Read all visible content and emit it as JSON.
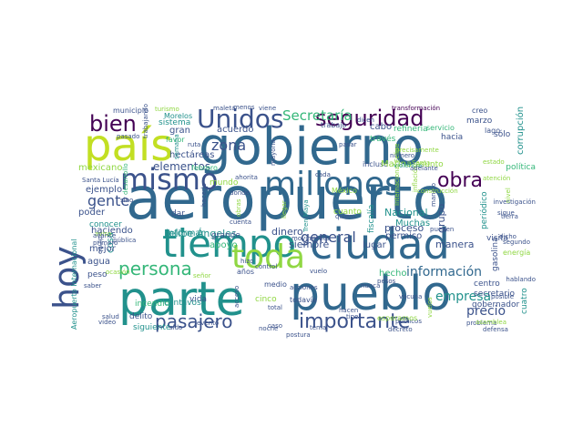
{
  "palette": {
    "purple": "#440154",
    "indigo": "#3b528b",
    "blue": "#31688e",
    "teal": "#21918c",
    "green": "#35b779",
    "lime": "#90d743",
    "yellow": "#c2df23"
  },
  "words": [
    {
      "text": "aeropuerto",
      "color": "blue"
    },
    {
      "text": "gobierno",
      "color": "blue"
    },
    {
      "text": "país",
      "color": "yellow"
    },
    {
      "text": "pueblo",
      "color": "blue"
    },
    {
      "text": "parte",
      "color": "teal"
    },
    {
      "text": "tiempo",
      "color": "teal"
    },
    {
      "text": "ciudad",
      "color": "blue"
    },
    {
      "text": "hoy",
      "color": "indigo"
    },
    {
      "text": "toda",
      "color": "lime"
    },
    {
      "text": "millones",
      "color": "blue"
    },
    {
      "text": "mismo",
      "color": "indigo"
    },
    {
      "text": "Unidos",
      "color": "indigo"
    },
    {
      "text": "bien",
      "color": "purple"
    },
    {
      "text": "seguridad",
      "color": "purple"
    },
    {
      "text": "obra",
      "color": "purple"
    },
    {
      "text": "pasajero",
      "color": "indigo"
    },
    {
      "text": "importante",
      "color": "indigo"
    },
    {
      "text": "persona",
      "color": "green"
    },
    {
      "text": "gente",
      "color": "indigo"
    },
    {
      "text": "general",
      "color": "indigo"
    },
    {
      "text": "información",
      "color": "blue"
    },
    {
      "text": "Secretaría",
      "color": "green"
    },
    {
      "text": "zona",
      "color": "indigo"
    },
    {
      "text": "empresa",
      "color": "teal"
    },
    {
      "text": "precio",
      "color": "indigo"
    },
    {
      "text": "elementos",
      "color": "indigo"
    },
    {
      "text": "Felipe Ángeles",
      "color": "teal"
    },
    {
      "text": "proceso",
      "color": "indigo"
    },
    {
      "text": "Nacional",
      "color": "teal"
    },
    {
      "text": "grupo",
      "color": "indigo"
    },
    {
      "text": "manera",
      "color": "indigo"
    },
    {
      "text": "hecho",
      "color": "green"
    },
    {
      "text": "siempre",
      "color": "indigo"
    },
    {
      "text": "lugar",
      "color": "indigo"
    },
    {
      "text": "Muchas",
      "color": "teal"
    },
    {
      "text": "permiso",
      "color": "indigo"
    },
    {
      "text": "dinero",
      "color": "indigo"
    },
    {
      "text": "apoyo",
      "color": "green"
    },
    {
      "text": "informar",
      "color": "teal"
    },
    {
      "text": "grande",
      "color": "indigo"
    },
    {
      "text": "dar",
      "color": "indigo"
    },
    {
      "text": "cosa",
      "color": "teal"
    },
    {
      "text": "agua",
      "color": "indigo"
    },
    {
      "text": "peso",
      "color": "indigo"
    },
    {
      "text": "mejor",
      "color": "indigo"
    },
    {
      "text": "poder",
      "color": "indigo"
    },
    {
      "text": "haciendo",
      "color": "indigo"
    },
    {
      "text": "conocer",
      "color": "teal"
    },
    {
      "text": "ejemplo",
      "color": "indigo"
    },
    {
      "text": "municipio",
      "color": "indigo"
    },
    {
      "text": "Morelos",
      "color": "teal"
    },
    {
      "text": "sistema",
      "color": "teal"
    },
    {
      "text": "gran",
      "color": "indigo"
    },
    {
      "text": "acuerdo",
      "color": "indigo"
    },
    {
      "text": "favor",
      "color": "green"
    },
    {
      "text": "hectáreas",
      "color": "indigo"
    },
    {
      "text": "febrero",
      "color": "green"
    },
    {
      "text": "mundo",
      "color": "lime"
    },
    {
      "text": "trabajo",
      "color": "indigo"
    },
    {
      "text": "cabo",
      "color": "indigo"
    },
    {
      "text": "través",
      "color": "green"
    },
    {
      "text": "refinería",
      "color": "green"
    },
    {
      "text": "servicio",
      "color": "green"
    },
    {
      "text": "marzo",
      "color": "indigo"
    },
    {
      "text": "creo",
      "color": "indigo"
    },
    {
      "text": "lago",
      "color": "indigo"
    },
    {
      "text": "hacia",
      "color": "indigo"
    },
    {
      "text": "incluso",
      "color": "indigo"
    },
    {
      "text": "fiscalía",
      "color": "teal"
    },
    {
      "text": "Marina",
      "color": "lime"
    },
    {
      "text": "asunto",
      "color": "lime"
    },
    {
      "text": "política",
      "color": "green"
    },
    {
      "text": "sólo",
      "color": "indigo"
    },
    {
      "text": "corrupción",
      "color": "teal"
    },
    {
      "text": "centro",
      "color": "indigo"
    },
    {
      "text": "secretario",
      "color": "indigo"
    },
    {
      "text": "gobernador",
      "color": "indigo"
    },
    {
      "text": "gasolina",
      "color": "indigo"
    },
    {
      "text": "periódico",
      "color": "teal"
    },
    {
      "text": "cuatro",
      "color": "teal"
    },
    {
      "text": "todavía",
      "color": "indigo"
    },
    {
      "text": "vida",
      "color": "indigo"
    },
    {
      "text": "cinco",
      "color": "lime"
    },
    {
      "text": "delito",
      "color": "indigo"
    },
    {
      "text": "siguiente",
      "color": "teal"
    },
    {
      "text": "incendio",
      "color": "green"
    },
    {
      "text": "centavos",
      "color": "teal"
    },
    {
      "text": "años",
      "color": "indigo"
    },
    {
      "text": "medio",
      "color": "indigo"
    },
    {
      "text": "Aeropuerto Internacional",
      "color": "teal"
    },
    {
      "text": "Tren Maya",
      "color": "teal"
    },
    {
      "text": "menos",
      "color": "indigo"
    },
    {
      "text": "cuanto",
      "color": "lime"
    },
    {
      "text": "acciones",
      "color": "indigo"
    },
    {
      "text": "semana",
      "color": "teal"
    },
    {
      "text": "mexicano",
      "color": "lime"
    },
    {
      "text": "maleta",
      "color": "indigo"
    },
    {
      "text": "viene",
      "color": "indigo"
    },
    {
      "text": "transformación",
      "color": "purple"
    },
    {
      "text": "pasado",
      "color": "indigo"
    },
    {
      "text": "ruta",
      "color": "indigo"
    },
    {
      "text": "dicen",
      "color": "indigo"
    },
    {
      "text": "pasar",
      "color": "indigo"
    },
    {
      "text": "violencia",
      "color": "teal"
    },
    {
      "text": "número",
      "color": "indigo"
    },
    {
      "text": "posible",
      "color": "indigo"
    },
    {
      "text": "defensa",
      "color": "indigo"
    },
    {
      "text": "hablando",
      "color": "indigo"
    },
    {
      "text": "nunca",
      "color": "indigo"
    },
    {
      "text": "pesos",
      "color": "indigo"
    },
    {
      "text": "pública",
      "color": "indigo"
    },
    {
      "text": "públicos",
      "color": "indigo"
    },
    {
      "text": "problema",
      "color": "indigo"
    },
    {
      "text": "decreto",
      "color": "indigo"
    },
    {
      "text": "precisamente",
      "color": "lime"
    },
    {
      "text": "salud",
      "color": "indigo"
    },
    {
      "text": "video",
      "color": "indigo"
    },
    {
      "text": "total",
      "color": "indigo"
    },
    {
      "text": "caso",
      "color": "indigo"
    },
    {
      "text": "tipo",
      "color": "indigo"
    },
    {
      "text": "vuelo",
      "color": "indigo"
    },
    {
      "text": "control",
      "color": "indigo"
    },
    {
      "text": "hizo",
      "color": "indigo"
    },
    {
      "text": "postura",
      "color": "indigo"
    },
    {
      "text": "acceso",
      "color": "indigo"
    },
    {
      "text": "evento",
      "color": "indigo"
    },
    {
      "text": "pueden",
      "color": "indigo"
    },
    {
      "text": "manejo",
      "color": "indigo"
    },
    {
      "text": "sigue",
      "color": "indigo"
    },
    {
      "text": "vacuna",
      "color": "indigo"
    },
    {
      "text": "hacen",
      "color": "indigo"
    },
    {
      "text": "cuenta",
      "color": "indigo"
    },
    {
      "text": "dicho",
      "color": "indigo"
    },
    {
      "text": "México",
      "color": "lime"
    },
    {
      "text": "energía",
      "color": "lime"
    },
    {
      "text": "equipo",
      "color": "indigo"
    },
    {
      "text": "llegar",
      "color": "lime"
    },
    {
      "text": "mayoría",
      "color": "indigo"
    },
    {
      "text": "primero",
      "color": "indigo"
    },
    {
      "text": "esperamos",
      "color": "lime"
    },
    {
      "text": "segundo",
      "color": "indigo"
    },
    {
      "text": "visita",
      "color": "indigo"
    },
    {
      "text": "aviso",
      "color": "lime"
    },
    {
      "text": "saber",
      "color": "indigo"
    },
    {
      "text": "señor",
      "color": "lime"
    },
    {
      "text": "hacerlo",
      "color": "indigo"
    },
    {
      "text": "Santa Lucía",
      "color": "indigo"
    },
    {
      "text": "desarrollo",
      "color": "green"
    },
    {
      "text": "investigación",
      "color": "indigo"
    },
    {
      "text": "nivel",
      "color": "lime"
    },
    {
      "text": "estado",
      "color": "lime"
    },
    {
      "text": "Santa",
      "color": "lime"
    },
    {
      "text": "inflación",
      "color": "lime"
    },
    {
      "text": "adelante",
      "color": "indigo"
    },
    {
      "text": "sido",
      "color": "indigo"
    },
    {
      "text": "noche",
      "color": "indigo"
    },
    {
      "text": "movimiento",
      "color": "indigo"
    },
    {
      "text": "Internacional Felipe",
      "color": "lime"
    },
    {
      "text": "construcción",
      "color": "lime"
    },
    {
      "text": "asamblea",
      "color": "lime"
    },
    {
      "text": "turismo",
      "color": "lime"
    },
    {
      "text": "trabajando",
      "color": "indigo"
    },
    {
      "text": "ahorita",
      "color": "indigo"
    },
    {
      "text": "avance",
      "color": "indigo"
    },
    {
      "text": "donde",
      "color": "indigo"
    },
    {
      "text": "tierra",
      "color": "indigo"
    },
    {
      "text": "vuelos",
      "color": "lime"
    },
    {
      "text": "tema",
      "color": "indigo"
    },
    {
      "text": "obras",
      "color": "lime"
    },
    {
      "text": "ocasión",
      "color": "lime"
    },
    {
      "text": "sino",
      "color": "indigo"
    },
    {
      "text": "cada",
      "color": "indigo"
    },
    {
      "text": "quiero",
      "color": "indigo"
    },
    {
      "text": "atención",
      "color": "lime"
    },
    {
      "text": "muchos",
      "color": "lime"
    },
    {
      "text": "mañana",
      "color": "indigo"
    }
  ]
}
